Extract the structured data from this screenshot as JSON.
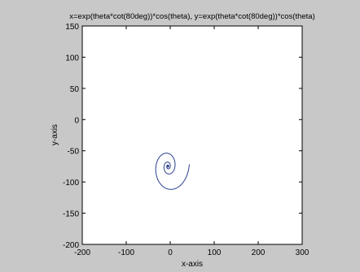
{
  "chart_data": {
    "type": "line",
    "title": "x=exp(theta*cot(80deg))*cos(theta), y=exp(theta*cot(80deg))*cos(theta)",
    "xlabel": "x-axis",
    "ylabel": "y-axis",
    "xlim": [
      -200,
      300
    ],
    "ylim": [
      -200,
      150
    ],
    "xticks": [
      -200,
      -100,
      0,
      100,
      200,
      300
    ],
    "yticks": [
      150,
      100,
      50,
      0,
      -50,
      -100,
      -150,
      -200
    ],
    "grid": false,
    "legend": "none",
    "series": [
      {
        "curve": "logarithmic-spiral",
        "cot_angle_deg": 80,
        "theta_start": 0.0,
        "theta_end": 25.2,
        "center": [
          -5,
          -75
        ],
        "scale": 0.57,
        "color": "#2a3f8f"
      }
    ]
  },
  "colors": {
    "figure_background": "#c8c8c8",
    "axes_background": "#ffffff",
    "line": "#2a3f8f"
  }
}
